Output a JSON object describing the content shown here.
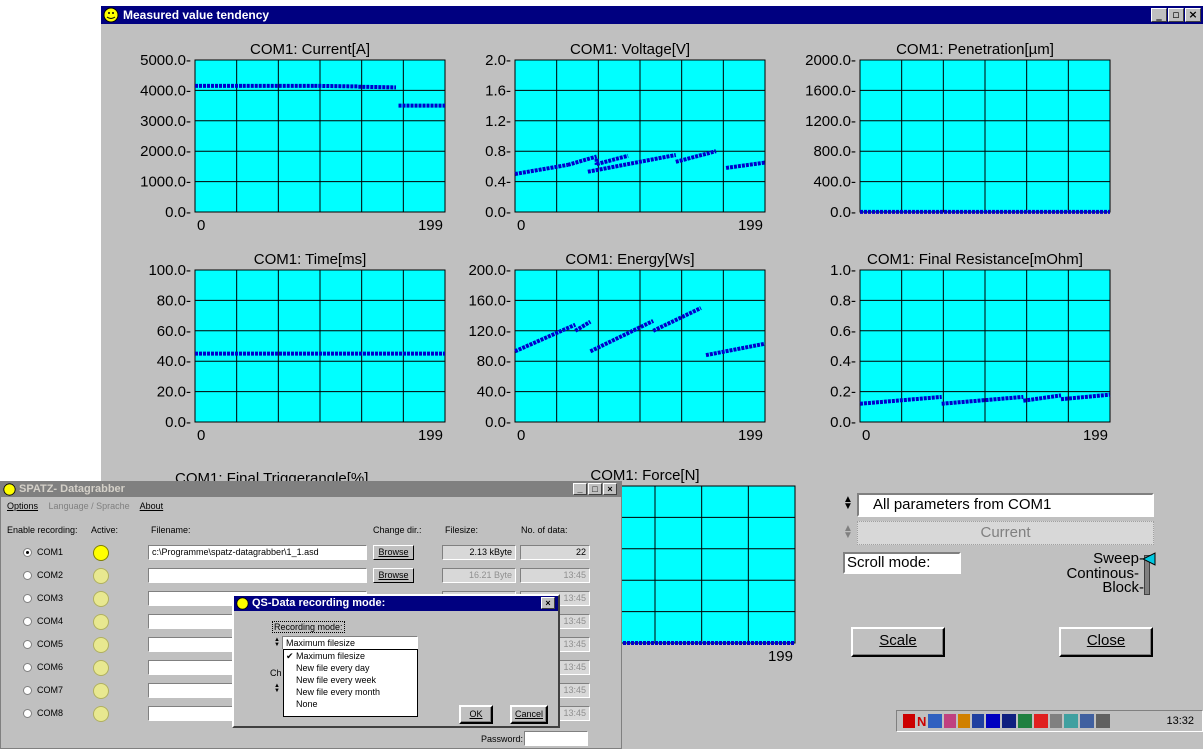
{
  "main_window": {
    "title": "Measured value tendency",
    "controls": [
      "_",
      "&#x25a1;",
      "X"
    ]
  },
  "chart_data": [
    {
      "type": "scatter",
      "title": "COM1: Current[A]",
      "y_ticks": [
        "5000.0",
        "4000.0",
        "3000.0",
        "2000.0",
        "1000.0",
        "0.0"
      ],
      "ylim": [
        0,
        5000
      ],
      "x_ticks": [
        "0",
        "199"
      ],
      "xlim": [
        0,
        199
      ],
      "segments": [
        {
          "x": [
            0,
            38
          ],
          "y": [
            4150,
            4150
          ]
        },
        {
          "x": [
            38,
            95
          ],
          "y": [
            4150,
            4150
          ]
        },
        {
          "x": [
            95,
            130
          ],
          "y": [
            4150,
            4130
          ]
        },
        {
          "x": [
            130,
            160
          ],
          "y": [
            4120,
            4100
          ]
        },
        {
          "x": [
            162,
            199
          ],
          "y": [
            3500,
            3500
          ]
        }
      ]
    },
    {
      "type": "scatter",
      "title": "COM1: Voltage[V]",
      "y_ticks": [
        "2.0",
        "1.6",
        "1.2",
        "0.8",
        "0.4",
        "0.0"
      ],
      "ylim": [
        0,
        2
      ],
      "x_ticks": [
        "0",
        "199"
      ],
      "xlim": [
        0,
        199
      ],
      "segments": [
        {
          "x": [
            0,
            42
          ],
          "y": [
            0.5,
            0.62
          ]
        },
        {
          "x": [
            42,
            65
          ],
          "y": [
            0.62,
            0.73
          ]
        },
        {
          "x": [
            65,
            65
          ],
          "y": [
            0.7,
            0.62
          ]
        },
        {
          "x": [
            65,
            90
          ],
          "y": [
            0.63,
            0.74
          ]
        },
        {
          "x": [
            58,
            128
          ],
          "y": [
            0.53,
            0.75
          ]
        },
        {
          "x": [
            128,
            160
          ],
          "y": [
            0.66,
            0.8
          ]
        },
        {
          "x": [
            168,
            199
          ],
          "y": [
            0.58,
            0.65
          ]
        }
      ]
    },
    {
      "type": "scatter",
      "title": "COM1: Penetration[µm]",
      "y_ticks": [
        "2000.0",
        "1600.0",
        "1200.0",
        "800.0",
        "400.0",
        "0.0"
      ],
      "ylim": [
        0,
        2000
      ],
      "x_ticks": [],
      "xlim": [
        0,
        199
      ],
      "segments": [
        {
          "x": [
            0,
            199
          ],
          "y": [
            2,
            2
          ]
        }
      ]
    },
    {
      "type": "scatter",
      "title": "COM1: Time[ms]",
      "y_ticks": [
        "100.0",
        "80.0",
        "60.0",
        "40.0",
        "20.0",
        "0.0"
      ],
      "ylim": [
        0,
        100
      ],
      "x_ticks": [
        "0",
        "199"
      ],
      "xlim": [
        0,
        199
      ],
      "segments": [
        {
          "x": [
            0,
            199
          ],
          "y": [
            45,
            45
          ]
        }
      ]
    },
    {
      "type": "scatter",
      "title": "COM1: Energy[Ws]",
      "y_ticks": [
        "200.0",
        "160.0",
        "120.0",
        "80.0",
        "40.0",
        "0.0"
      ],
      "ylim": [
        0,
        200
      ],
      "x_ticks": [
        "0",
        "199"
      ],
      "xlim": [
        0,
        199
      ],
      "segments": [
        {
          "x": [
            0,
            48
          ],
          "y": [
            93,
            128
          ]
        },
        {
          "x": [
            48,
            60
          ],
          "y": [
            120,
            132
          ]
        },
        {
          "x": [
            60,
            110
          ],
          "y": [
            93,
            133
          ]
        },
        {
          "x": [
            110,
            148
          ],
          "y": [
            120,
            150
          ]
        },
        {
          "x": [
            152,
            199
          ],
          "y": [
            88,
            103
          ]
        }
      ]
    },
    {
      "type": "scatter",
      "title": "COM1: Final Resistance[mOhm]",
      "y_ticks": [
        "1.0",
        "0.8",
        "0.6",
        "0.4",
        "0.2",
        "0.0"
      ],
      "ylim": [
        0,
        1
      ],
      "x_ticks": [
        "0",
        "199"
      ],
      "xlim": [
        0,
        199
      ],
      "segments": [
        {
          "x": [
            0,
            65
          ],
          "y": [
            0.12,
            0.165
          ]
        },
        {
          "x": [
            65,
            130
          ],
          "y": [
            0.12,
            0.165
          ]
        },
        {
          "x": [
            130,
            160
          ],
          "y": [
            0.14,
            0.175
          ]
        },
        {
          "x": [
            160,
            199
          ],
          "y": [
            0.15,
            0.18
          ]
        }
      ]
    },
    {
      "type": "scatter",
      "title": "COM1: Final Triggerangle[%]",
      "y_ticks": [],
      "ylim": [
        0,
        100
      ],
      "x_ticks": [],
      "xlim": [
        0,
        199
      ],
      "segments": []
    },
    {
      "type": "scatter",
      "title": "COM1: Force[N]",
      "y_ticks": [],
      "ylim": [
        0,
        100
      ],
      "x_ticks": [
        "199"
      ],
      "xlim": [
        0,
        199
      ],
      "segments": [
        {
          "x": [
            0,
            199
          ],
          "y": [
            0,
            0
          ]
        }
      ]
    }
  ],
  "controls": {
    "param_select": "All parameters from COM1",
    "param_sub": "Current",
    "scroll_label": "Scroll mode:",
    "scroll_options": [
      "Sweep-",
      "Continous-",
      "Block-"
    ],
    "scale_button": "Scale",
    "close_button": "Close"
  },
  "datagrabber": {
    "title": "SPATZ- Datagrabber",
    "menu": [
      "Options",
      "Language / Sprache",
      "About"
    ],
    "headers": {
      "enable": "Enable recording:",
      "active": "Active:",
      "filename": "Filename:",
      "change_dir": "Change dir.:",
      "filesize": "Filesize:",
      "count": "No. of data:"
    },
    "rows": [
      {
        "port": "COM1",
        "filename": "c:\\Programme\\spatz-datagrabber\\1_1.asd",
        "filesize": "2.13 kByte",
        "count": "22",
        "browse": "Browse"
      },
      {
        "port": "COM2",
        "filename": "",
        "filesize": "16.21 Byte",
        "count": "13:45",
        "browse": "Browse"
      },
      {
        "port": "COM3",
        "filename": "",
        "filesize": "",
        "count": "13:45",
        "browse": ""
      },
      {
        "port": "COM4",
        "filename": "",
        "filesize": "",
        "count": "13:45",
        "browse": ""
      },
      {
        "port": "COM5",
        "filename": "",
        "filesize": "",
        "count": "13:45",
        "browse": ""
      },
      {
        "port": "COM6",
        "filename": "",
        "filesize": "",
        "count": "13:45",
        "browse": ""
      },
      {
        "port": "COM7",
        "filename": "",
        "filesize": "",
        "count": "13:45",
        "browse": ""
      },
      {
        "port": "COM8",
        "filename": "",
        "filesize": "",
        "count": "13:45",
        "browse": ""
      }
    ],
    "password_label": "Password:"
  },
  "qs_dialog": {
    "title": "QS-Data recording mode:",
    "recording_mode_label": "Recording mode:",
    "selected": "Maximum filesize",
    "options": [
      "Maximum filesize",
      "New file every day",
      "New file every week",
      "New file every month",
      "None"
    ],
    "side_label": "Ch",
    "ok": "OK",
    "cancel": "Cancel"
  },
  "taskbar": {
    "time": "13:32"
  },
  "colors": {
    "plot_bg": "#00ffff",
    "marker": "#0000cc",
    "title_bar": "#000080"
  }
}
